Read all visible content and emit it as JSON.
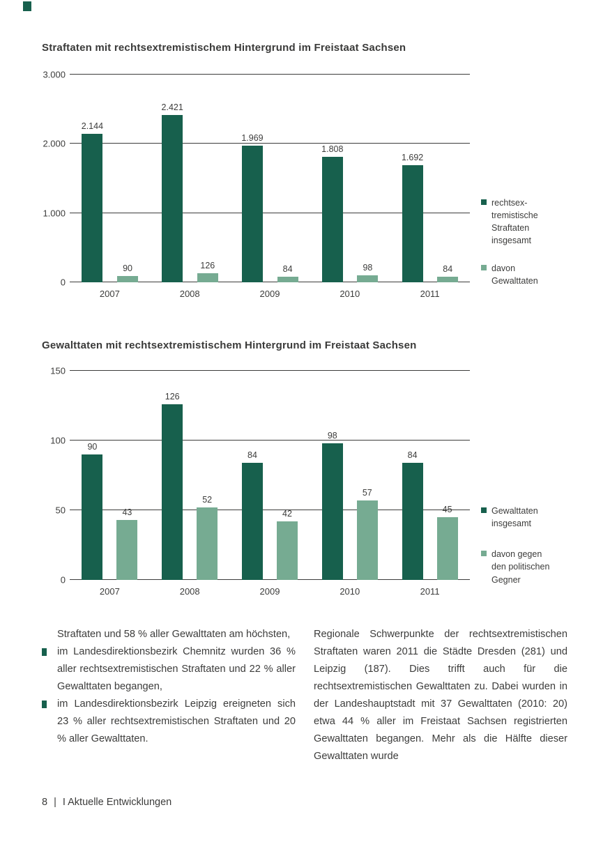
{
  "colors": {
    "dark_green": "#17604d",
    "light_green": "#76ab92"
  },
  "chart_data": [
    {
      "type": "bar",
      "title": "Straftaten mit rechtsextremistischem Hintergrund im Freistaat Sachsen",
      "categories": [
        "2007",
        "2008",
        "2009",
        "2010",
        "2011"
      ],
      "series": [
        {
          "name": "rechtsex-\ntremistische\nStraftaten\ninsgesamt",
          "color": "dark",
          "values": [
            2144,
            2421,
            1969,
            1808,
            1692
          ],
          "labels": [
            "2.144",
            "2.421",
            "1.969",
            "1.808",
            "1.692"
          ]
        },
        {
          "name": "davon\nGewalttaten",
          "color": "light",
          "values": [
            90,
            126,
            84,
            98,
            84
          ],
          "labels": [
            "90",
            "126",
            "84",
            "98",
            "84"
          ]
        }
      ],
      "ylim": [
        0,
        3000
      ],
      "yticks": [
        {
          "value": 0,
          "label": "0"
        },
        {
          "value": 1000,
          "label": "1.000"
        },
        {
          "value": 2000,
          "label": "2.000"
        },
        {
          "value": 3000,
          "label": "3.000"
        }
      ],
      "grid": true,
      "legend_position": "right"
    },
    {
      "type": "bar",
      "title": "Gewalttaten mit rechtsextremistischem Hintergrund im Freistaat Sachsen",
      "categories": [
        "2007",
        "2008",
        "2009",
        "2010",
        "2011"
      ],
      "series": [
        {
          "name": "Gewalttaten\ninsgesamt",
          "color": "dark",
          "values": [
            90,
            126,
            84,
            98,
            84
          ],
          "labels": [
            "90",
            "126",
            "84",
            "98",
            "84"
          ]
        },
        {
          "name": "davon gegen\nden politischen\nGegner",
          "color": "light",
          "values": [
            43,
            52,
            42,
            57,
            45
          ],
          "labels": [
            "43",
            "52",
            "42",
            "57",
            "45"
          ]
        }
      ],
      "ylim": [
        0,
        150
      ],
      "yticks": [
        {
          "value": 0,
          "label": "0"
        },
        {
          "value": 50,
          "label": "50"
        },
        {
          "value": 100,
          "label": "100"
        },
        {
          "value": 150,
          "label": "150"
        }
      ],
      "grid": true,
      "legend_position": "right"
    }
  ],
  "body": {
    "left_column": {
      "intro": "Straftaten und 58 % aller Gewalttaten am höchsten,",
      "bullets": [
        "im Landesdirektionsbezirk Chemnitz wurden 36 % aller rechtsextremistischen Straftaten und 22 % aller Gewalttaten begangen,",
        "im Landesdirektionsbezirk Leipzig ereigneten sich 23 % aller rechtsextremistischen Straftaten und 20 % aller Gewalttaten."
      ]
    },
    "right_column": {
      "paragraph": "Regionale Schwerpunkte der rechtsextremistischen Straftaten waren 2011 die Städte Dresden (281) und Leipzig (187). Dies trifft auch für die rechtsextremistischen Gewalttaten zu. Dabei wurden in der Landeshauptstadt mit 37 Gewalttaten (2010: 20) etwa 44 % aller im Freistaat Sachsen registrierten Gewalttaten begangen. Mehr als die Hälfte dieser Gewalttaten wurde"
    }
  },
  "footer": {
    "page_number": "8",
    "separator": "|",
    "section": "I Aktuelle Entwicklungen"
  }
}
